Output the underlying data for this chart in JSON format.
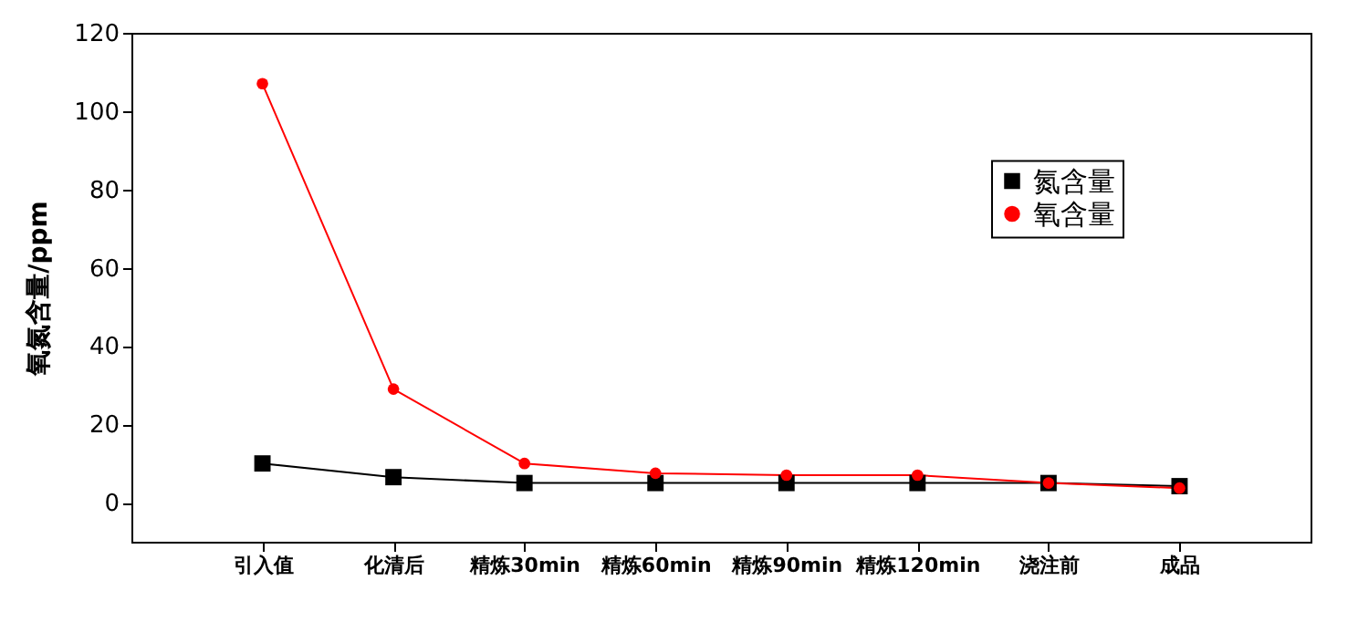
{
  "chart_data": {
    "type": "line",
    "ylabel": "氧氮含量/ppm",
    "categories": [
      "引入值",
      "化清后",
      "精炼30min",
      "精炼60min",
      "精炼90min",
      "精炼120min",
      "浇注前",
      "成品"
    ],
    "series": [
      {
        "name": "氮含量",
        "color": "#000000",
        "marker": "square",
        "values": [
          10,
          6.5,
          5,
          5,
          5,
          5,
          5,
          4.2
        ]
      },
      {
        "name": "氧含量",
        "color": "#ff0000",
        "marker": "circle",
        "values": [
          107,
          29,
          10,
          7.5,
          7,
          7,
          5,
          3.7
        ]
      }
    ],
    "ylim": [
      -10,
      120
    ],
    "yticks": [
      0,
      20,
      40,
      60,
      80,
      100,
      120
    ],
    "grid": false,
    "legend": "right"
  }
}
